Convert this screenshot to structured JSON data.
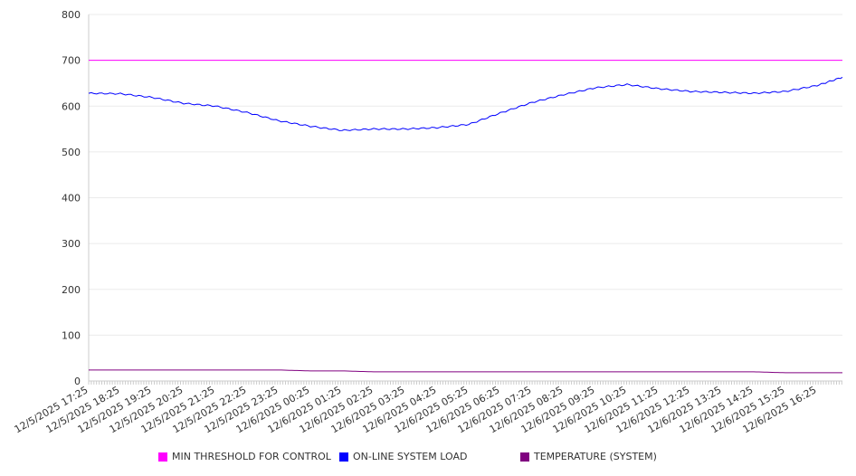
{
  "chart_data": {
    "type": "line",
    "title": "",
    "xlabel": "",
    "ylabel": "",
    "ylim": [
      0,
      800
    ],
    "yticks": [
      0,
      100,
      200,
      300,
      400,
      500,
      600,
      700,
      800
    ],
    "grid": true,
    "legend_position": "bottom",
    "x_tick_labels": [
      "12/5/2025 17:25",
      "12/5/2025 18:25",
      "12/5/2025 19:25",
      "12/5/2025 20:25",
      "12/5/2025 21:25",
      "12/5/2025 22:25",
      "12/5/2025 23:25",
      "12/6/2025 00:25",
      "12/6/2025 01:25",
      "12/6/2025 02:25",
      "12/6/2025 03:25",
      "12/6/2025 04:25",
      "12/6/2025 05:25",
      "12/6/2025 06:25",
      "12/6/2025 07:25",
      "12/6/2025 08:25",
      "12/6/2025 09:25",
      "12/6/2025 10:25",
      "12/6/2025 11:25",
      "12/6/2025 12:25",
      "12/6/2025 13:25",
      "12/6/2025 14:25",
      "12/6/2025 15:25",
      "12/6/2025 16:25"
    ],
    "x_hours": [
      0,
      1,
      2,
      3,
      4,
      5,
      6,
      7,
      8,
      9,
      10,
      11,
      12,
      13,
      14,
      15,
      16,
      17,
      18,
      19,
      20,
      21,
      22,
      23,
      23.8
    ],
    "x_range_hours": [
      0,
      23.8
    ],
    "series": [
      {
        "name": "MIN THRESHOLD FOR CONTROL",
        "color": "#ff00ff",
        "values": [
          700,
          700,
          700,
          700,
          700,
          700,
          700,
          700,
          700,
          700,
          700,
          700,
          700,
          700,
          700,
          700,
          700,
          700,
          700,
          700,
          700,
          700,
          700,
          700,
          700
        ]
      },
      {
        "name": "ON-LINE SYSTEM LOAD",
        "color": "#0000ff",
        "values": [
          628,
          627,
          619,
          606,
          600,
          586,
          568,
          556,
          547,
          550,
          550,
          553,
          560,
          585,
          608,
          625,
          640,
          647,
          638,
          632,
          630,
          628,
          632,
          645,
          663
        ]
      },
      {
        "name": "TEMPERATURE (SYSTEM)",
        "color": "#800080",
        "values": [
          24,
          24,
          24,
          24,
          24,
          24,
          24,
          22,
          22,
          20,
          20,
          20,
          20,
          20,
          20,
          20,
          20,
          20,
          20,
          20,
          20,
          20,
          18,
          18,
          18
        ]
      }
    ]
  }
}
